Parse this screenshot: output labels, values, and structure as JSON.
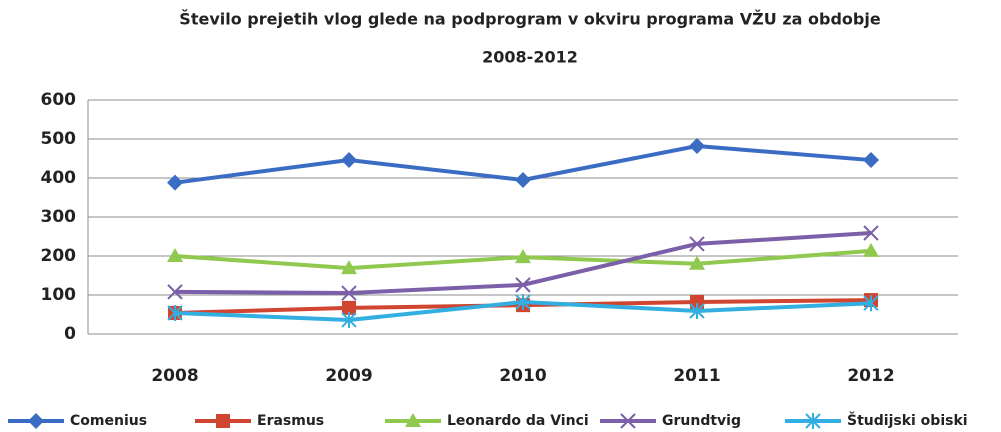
{
  "chart_data": {
    "type": "line",
    "title": [
      "Število prejetih vlog glede na podprogram v okviru programa VŽU za obdobje",
      "2008-2012"
    ],
    "categories": [
      "2008",
      "2009",
      "2010",
      "2011",
      "2012"
    ],
    "series": [
      {
        "name": "Comenius",
        "color": "#3b6cc3",
        "marker": "diamond",
        "values": [
          388,
          446,
          395,
          482,
          446
        ]
      },
      {
        "name": "Erasmus",
        "color": "#d0452f",
        "marker": "square",
        "values": [
          54,
          67,
          74,
          82,
          87
        ]
      },
      {
        "name": "Leonardo da Vinci",
        "color": "#8fc950",
        "marker": "triangle",
        "values": [
          200,
          169,
          197,
          180,
          213
        ]
      },
      {
        "name": "Grundtvig",
        "color": "#7b5fa8",
        "marker": "x",
        "values": [
          108,
          105,
          126,
          231,
          259
        ]
      },
      {
        "name": "Študijski obiski",
        "color": "#33aee0",
        "marker": "asterisk",
        "values": [
          54,
          36,
          82,
          59,
          79
        ]
      }
    ],
    "ylim": [
      0,
      600
    ],
    "yticks": [
      0,
      100,
      200,
      300,
      400,
      500,
      600
    ],
    "grid": true,
    "legend": "bottom"
  }
}
